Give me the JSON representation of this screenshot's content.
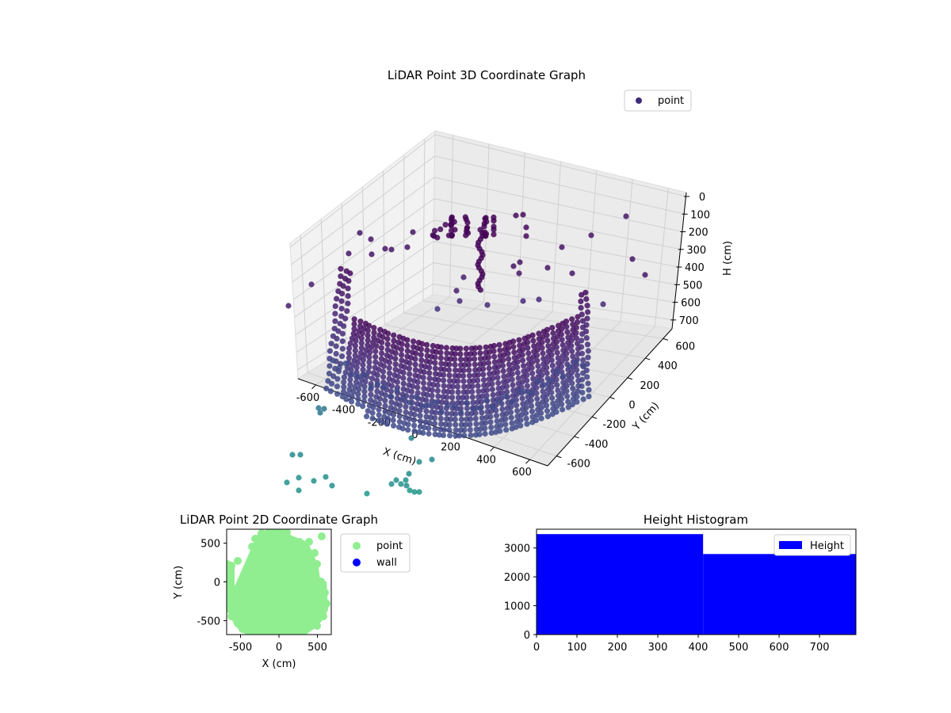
{
  "chart_data": [
    {
      "type": "scatter",
      "projection": "3d",
      "title": "LiDAR Point 3D Coordinate Graph",
      "xlabel": "X (cm)",
      "ylabel": "Y (cm)",
      "zlabel": "H (cm)",
      "xticks": [
        "-600",
        "-400",
        "-200",
        "0",
        "200",
        "400",
        "600"
      ],
      "yticks": [
        "-600",
        "-400",
        "-200",
        "0",
        "200",
        "400",
        "600"
      ],
      "zticks": [
        "0",
        "100",
        "200",
        "300",
        "400",
        "500",
        "600",
        "700"
      ],
      "xlim": [
        -700,
        700
      ],
      "ylim": [
        -700,
        700
      ],
      "zlim": [
        0,
        750
      ],
      "zaxis_inverted": true,
      "grid": true,
      "legend": {
        "position": "top-right",
        "entries": [
          "point"
        ]
      },
      "series": [
        {
          "name": "point",
          "color": "#3e2a7a",
          "colormap": "viridis",
          "description_values": {
            "wall_arc_radius_cm": 600,
            "wall_height_range_cm": [
              0,
              650
            ],
            "scattered_points": [
              [
                -600,
                -650,
                430
              ],
              [
                -450,
                300,
                150
              ],
              [
                450,
                350,
                90
              ],
              [
                250,
                450,
                330
              ],
              [
                -300,
                400,
                120
              ],
              [
                150,
                500,
                200
              ],
              [
                550,
                150,
                260
              ],
              [
                -500,
                -600,
                720
              ],
              [
                -350,
                -550,
                760
              ],
              [
                -200,
                -500,
                790
              ],
              [
                0,
                -580,
                800
              ],
              [
                100,
                -520,
                790
              ],
              [
                300,
                -400,
                780
              ]
            ]
          }
        }
      ]
    },
    {
      "type": "scatter",
      "title": "LiDAR Point 2D Coordinate Graph",
      "xlabel": "X (cm)",
      "ylabel": "Y (cm)",
      "xticks": [
        "-500",
        "0",
        "500"
      ],
      "yticks": [
        "-500",
        "0",
        "500"
      ],
      "xlim": [
        -680,
        680
      ],
      "ylim": [
        -680,
        680
      ],
      "legend": {
        "position": "right-outside",
        "entries": [
          "point",
          "wall"
        ]
      },
      "series": [
        {
          "name": "point",
          "color": "#90ee90"
        },
        {
          "name": "wall",
          "color": "#0000ff"
        }
      ]
    },
    {
      "type": "bar",
      "subtype": "histogram",
      "title": "Height Histogram",
      "xticks": [
        "0",
        "100",
        "200",
        "300",
        "400",
        "500",
        "600",
        "700"
      ],
      "yticks": [
        "0",
        "1000",
        "2000",
        "3000"
      ],
      "xlim": [
        0,
        790
      ],
      "ylim": [
        0,
        3650
      ],
      "legend": {
        "position": "top-right",
        "entries": [
          "Height"
        ]
      },
      "series": [
        {
          "name": "Height",
          "color": "#0000ff",
          "bins": [
            [
              0,
              412,
              3480
            ],
            [
              412,
              790,
              2790
            ]
          ]
        }
      ]
    }
  ]
}
